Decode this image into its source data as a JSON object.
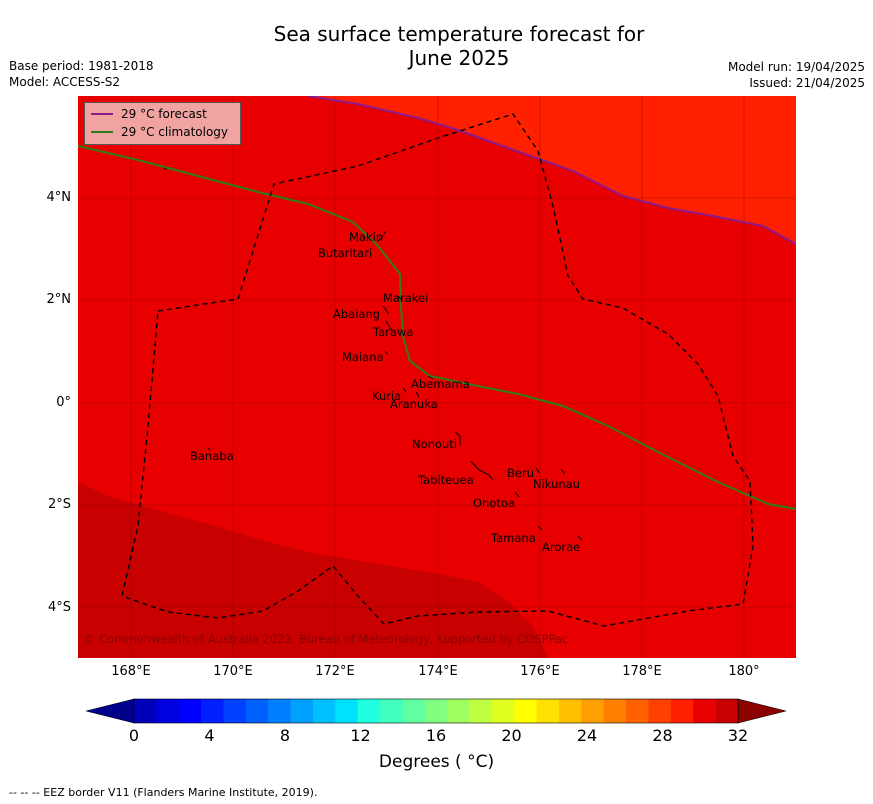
{
  "title_line1": "Sea surface temperature forecast for",
  "title_line2": "June 2025",
  "base_period": "Base period: 1981-2018",
  "model": "Model: ACCESS-S2",
  "model_run": "Model run: 19/04/2025",
  "issued": "Issued: 21/04/2025",
  "legend": {
    "forecast_label": "29 °C  forecast",
    "climatology_label": "29 °C  climatology",
    "forecast_color": "#8b1a8b",
    "climatology_color": "#2f7d1a"
  },
  "lat_ticks": [
    "4°N",
    "2°N",
    "0°",
    "2°S",
    "4°S"
  ],
  "lon_ticks": [
    "168°E",
    "170°E",
    "172°E",
    "174°E",
    "176°E",
    "178°E",
    "180°"
  ],
  "islands": [
    {
      "name": "Makin"
    },
    {
      "name": "Butaritari"
    },
    {
      "name": "Marakei"
    },
    {
      "name": "Abaiang"
    },
    {
      "name": "Tarawa"
    },
    {
      "name": "Maiana"
    },
    {
      "name": "Abemama"
    },
    {
      "name": "Kuria"
    },
    {
      "name": "Aranuka"
    },
    {
      "name": "Nonouti"
    },
    {
      "name": "Banaba"
    },
    {
      "name": "Beru"
    },
    {
      "name": "Tabiteuea"
    },
    {
      "name": "Nikunau"
    },
    {
      "name": "Onotoa"
    },
    {
      "name": "Tamana"
    },
    {
      "name": "Arorae"
    }
  ],
  "copyright": "© Commonwealth of Australia 2023, Bureau of Meteorology, supported by COSPPac",
  "colorbar": {
    "ticks": [
      "0",
      "4",
      "8",
      "12",
      "16",
      "20",
      "24",
      "28",
      "32"
    ],
    "label": "Degrees ( °C)",
    "colors": [
      "#00008b",
      "#0000b8",
      "#0000e0",
      "#0000ff",
      "#0020ff",
      "#0040ff",
      "#0060ff",
      "#0080ff",
      "#00a0ff",
      "#00c0ff",
      "#00e0ff",
      "#20ffe0",
      "#40ffc0",
      "#60ffa0",
      "#80ff80",
      "#a0ff60",
      "#c0ff40",
      "#e0ff20",
      "#ffff00",
      "#ffe000",
      "#ffc000",
      "#ffa000",
      "#ff8000",
      "#ff6000",
      "#ff4000",
      "#ff2000",
      "#e80000",
      "#c80000",
      "#8b0000"
    ]
  },
  "eez_note": "--  --  -- EEZ border V11 (Flanders Marine Institute, 2019)."
}
